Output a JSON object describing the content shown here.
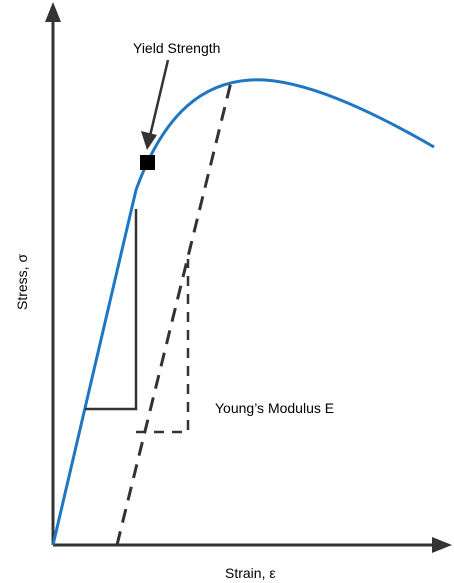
{
  "labels": {
    "yield_strength": "Yield Strength",
    "youngs_modulus": "Young’s Modulus E",
    "x_axis": "Strain, ε",
    "y_axis": "Stress, σ"
  },
  "colors": {
    "curve": "#1f77c4",
    "axes": "#333333",
    "dashed": "#333333",
    "triangle": "#333333",
    "marker": "#000000"
  }
}
